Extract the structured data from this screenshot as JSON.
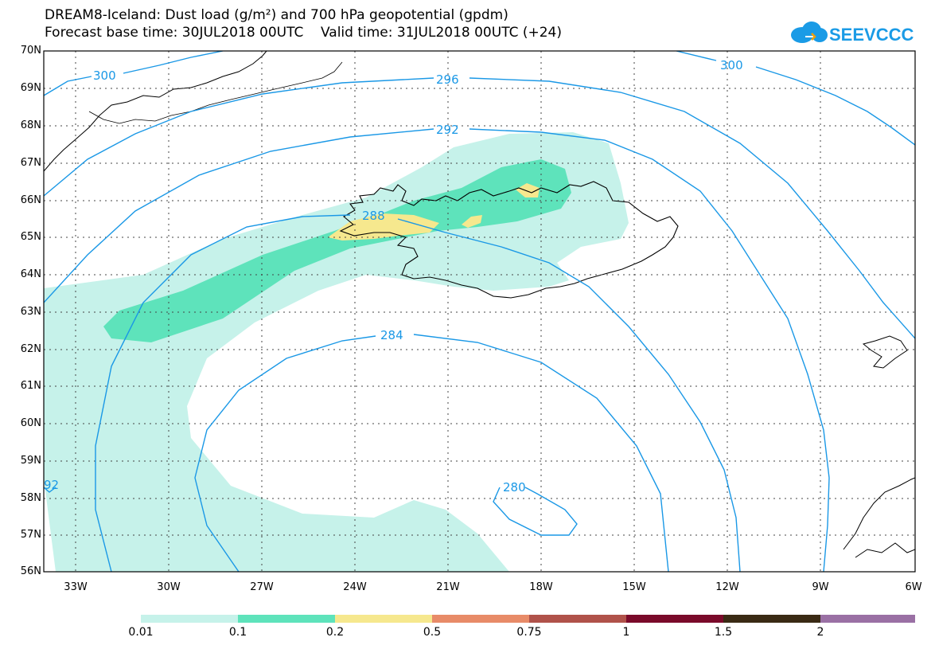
{
  "title_line1": "DREAM8-Iceland: Dust load (g/m²) and 700 hPa geopotential (gpdm)",
  "title_line2": "Forecast base time: 30JUL2018 00UTC    Valid time: 31JUL2018 00UTC (+24)",
  "logo_text": "SEEVCCC",
  "logo_icon": "cloud-icon",
  "lat_labels": [
    "70N",
    "69N",
    "68N",
    "67N",
    "66N",
    "65N",
    "64N",
    "63N",
    "62N",
    "61N",
    "60N",
    "59N",
    "58N",
    "57N",
    "56N"
  ],
  "lon_labels": [
    "33W",
    "30W",
    "27W",
    "24W",
    "21W",
    "18W",
    "15W",
    "12W",
    "9W",
    "6W"
  ],
  "contour_labels": [
    "300",
    "296",
    "292",
    "288",
    "284",
    "280",
    "300",
    "92"
  ],
  "colorbar": {
    "labels": [
      "0.01",
      "0.1",
      "0.2",
      "0.5",
      "0.75",
      "1",
      "1.5",
      "2"
    ],
    "colors": [
      "#c6f2ea",
      "#5ee3bb",
      "#f6e88e",
      "#e88b68",
      "#b0524a",
      "#7a0a2a",
      "#3a2a14",
      "#9a70a4"
    ]
  },
  "colors": {
    "dust_low": "#c6f2ea",
    "dust_mid": "#5ee3bb",
    "dust_high": "#f6e88e",
    "contour": "#1a98e6"
  }
}
